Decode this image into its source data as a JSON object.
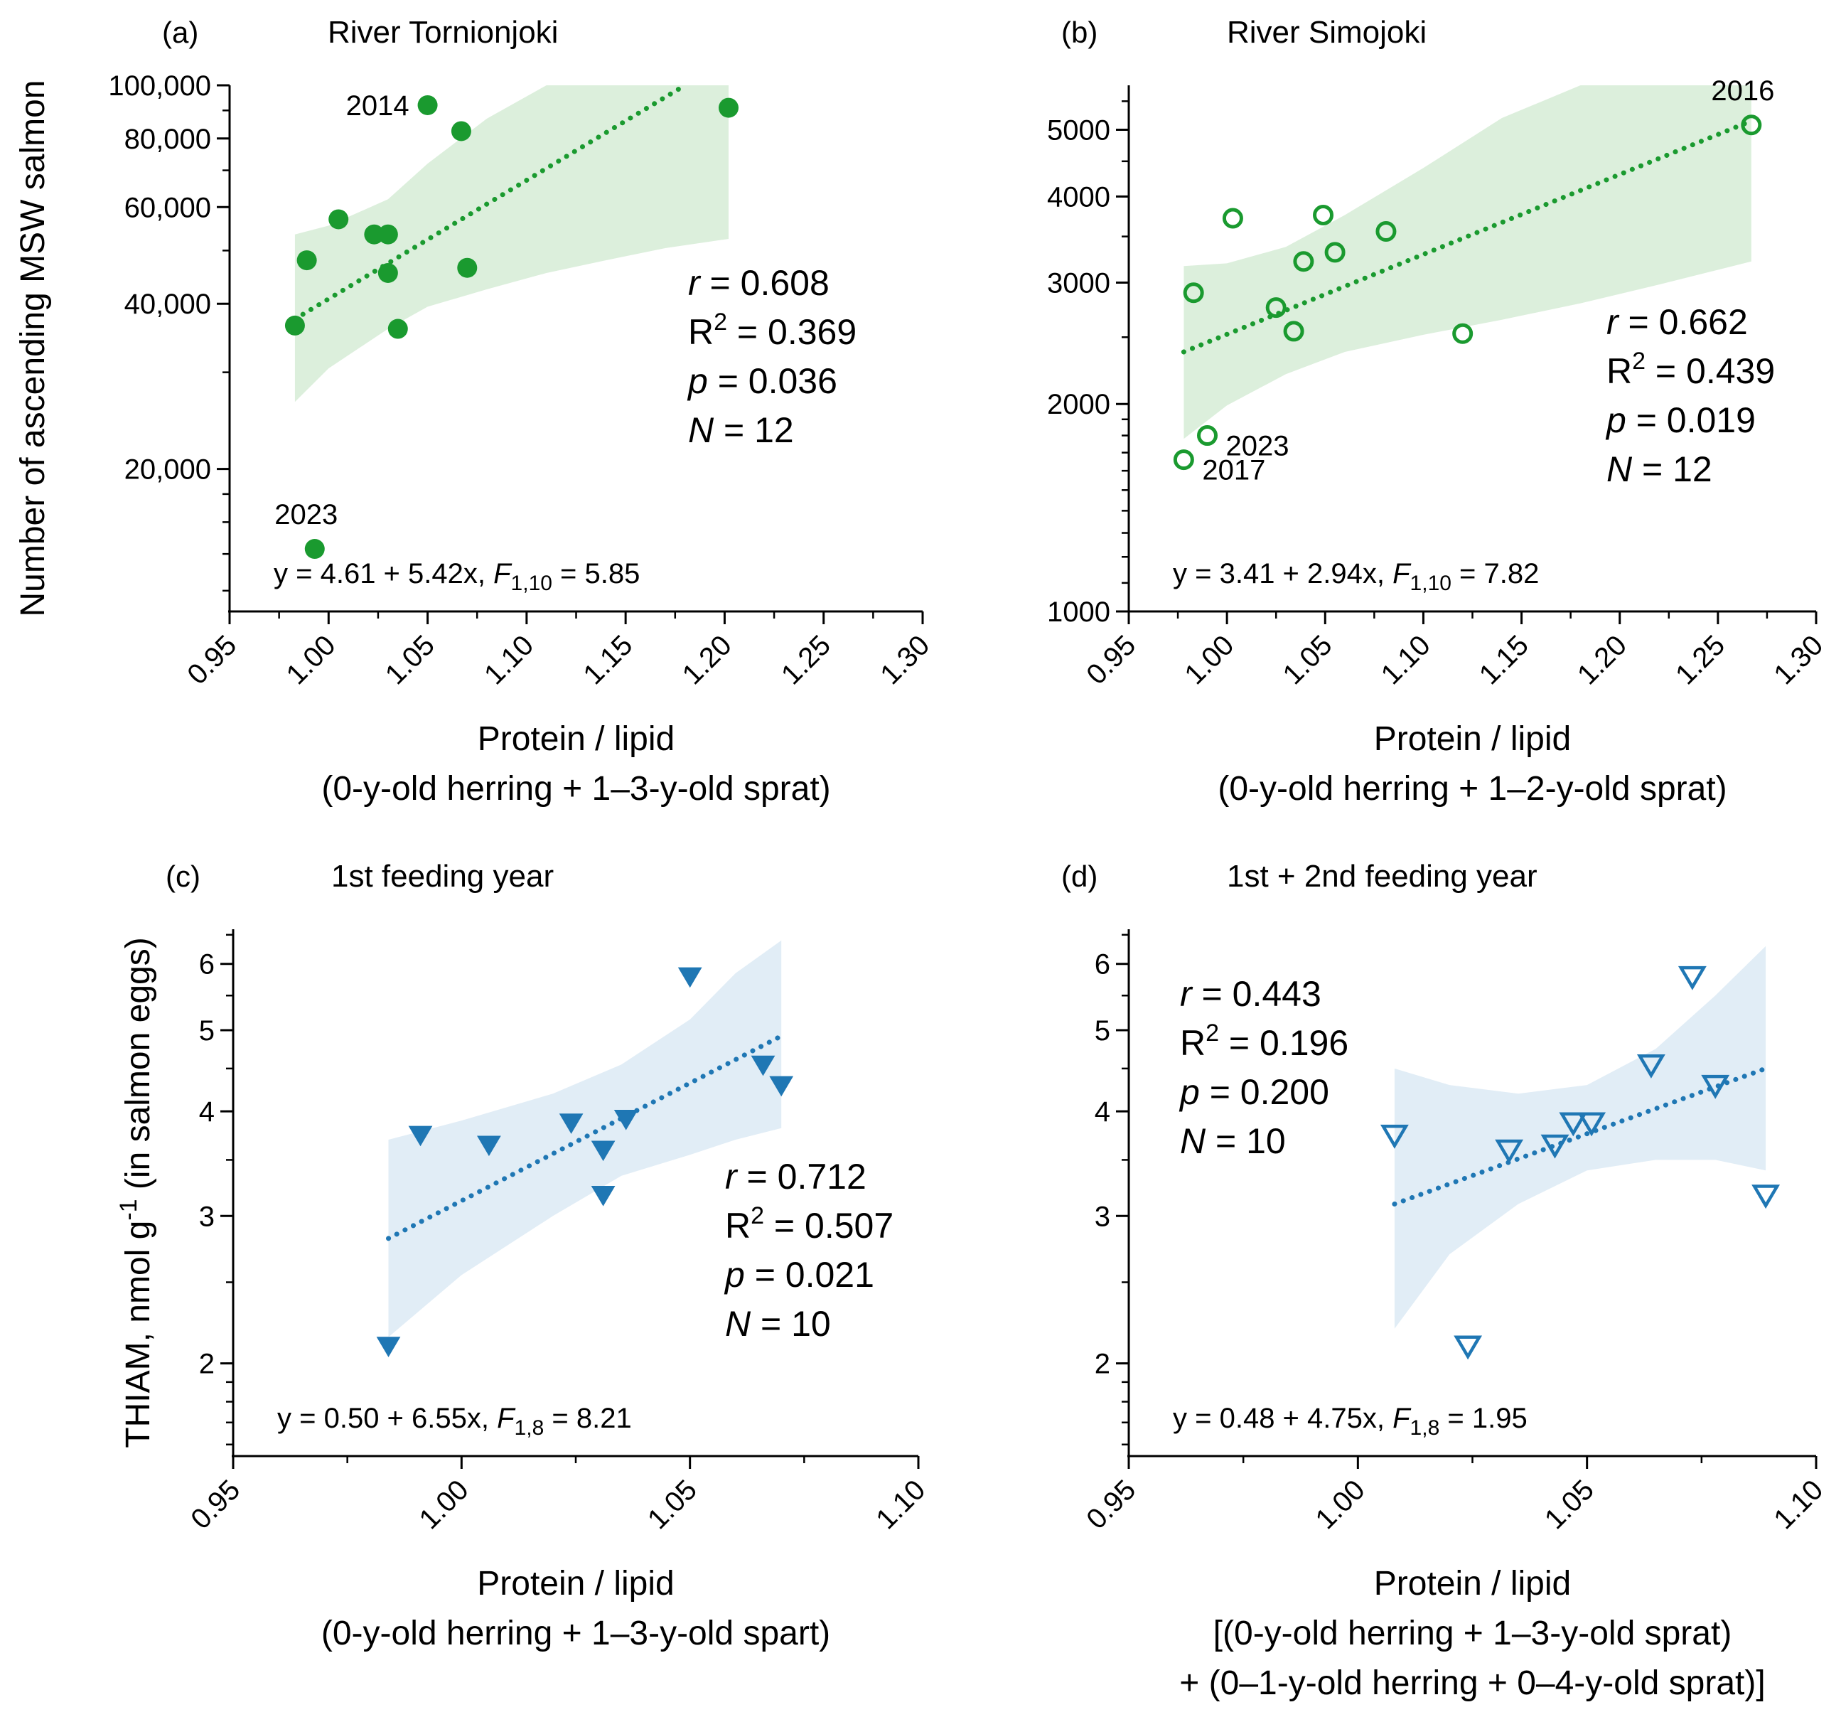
{
  "chart_data": [
    {
      "panel": "a",
      "type": "scatter",
      "letter": "(a)",
      "title": "River Tornionjoki",
      "ylabel": "Number of ascending MSW salmon",
      "xlabel": [
        "Protein / lipid",
        "(0-y-old herring + 1–3-y-old sprat)"
      ],
      "x_ticks": [
        "0.95",
        "1.00",
        "1.05",
        "1.10",
        "1.15",
        "1.20",
        "1.25",
        "1.30"
      ],
      "y_ticks": [
        "20,000",
        "40,000",
        "60,000",
        "80,000",
        "100,000"
      ],
      "xlim": [
        0.95,
        1.3
      ],
      "ylim": [
        11000,
        100000
      ],
      "yscale": "log",
      "marker": "filled-circle",
      "color": "#1a9a2f",
      "band_color": "#dcefdc",
      "points": [
        {
          "x": 0.983,
          "y": 36500
        },
        {
          "x": 0.989,
          "y": 48000
        },
        {
          "x": 0.993,
          "y": 14300
        },
        {
          "x": 1.005,
          "y": 57000
        },
        {
          "x": 1.023,
          "y": 53500
        },
        {
          "x": 1.03,
          "y": 53500
        },
        {
          "x": 1.03,
          "y": 45500
        },
        {
          "x": 1.035,
          "y": 36000
        },
        {
          "x": 1.05,
          "y": 92000
        },
        {
          "x": 1.067,
          "y": 82500
        },
        {
          "x": 1.07,
          "y": 46500
        },
        {
          "x": 1.202,
          "y": 91000
        }
      ],
      "point_labels": [
        {
          "text": "2014",
          "x": 1.05,
          "y": 92000,
          "pos": "left"
        },
        {
          "text": "2023",
          "x": 0.993,
          "y": 14300,
          "pos": "above"
        }
      ],
      "fit": {
        "x": [
          0.983,
          1.18
        ],
        "y": [
          37500,
          100000
        ]
      },
      "band": {
        "x": [
          0.983,
          1.0,
          1.03,
          1.05,
          1.08,
          1.11,
          1.14,
          1.17,
          1.202
        ],
        "upper": [
          53500,
          55500,
          62000,
          72000,
          87000,
          100000,
          100000,
          100000,
          100000
        ],
        "lower": [
          26500,
          30500,
          36000,
          39500,
          42500,
          45500,
          48000,
          50500,
          52500
        ]
      },
      "stats": {
        "r": "0.608",
        "R2": "0.369",
        "p": "0.036",
        "N": "12"
      },
      "stats_pos": "mid-right",
      "equation": {
        "prefix": "y = 4.61 + 5.42x, ",
        "F_sub": "1,10",
        "F_val": " = 5.85"
      }
    },
    {
      "panel": "b",
      "type": "scatter",
      "letter": "(b)",
      "title": "River Simojoki",
      "ylabel": "",
      "xlabel": [
        "Protein / lipid",
        "(0-y-old herring + 1–2-y-old sprat)"
      ],
      "x_ticks": [
        "0.95",
        "1.00",
        "1.05",
        "1.10",
        "1.15",
        "1.20",
        "1.25",
        "1.30"
      ],
      "y_ticks": [
        "1000",
        "2000",
        "3000",
        "4000",
        "5000"
      ],
      "xlim": [
        0.95,
        1.3
      ],
      "ylim": [
        1000,
        5800
      ],
      "yscale": "log",
      "marker": "open-circle",
      "color": "#1a9a2f",
      "band_color": "#dcefdc",
      "points": [
        {
          "x": 0.978,
          "y": 1660
        },
        {
          "x": 0.983,
          "y": 2900
        },
        {
          "x": 0.99,
          "y": 1800
        },
        {
          "x": 1.003,
          "y": 3720
        },
        {
          "x": 1.025,
          "y": 2760
        },
        {
          "x": 1.034,
          "y": 2550
        },
        {
          "x": 1.039,
          "y": 3220
        },
        {
          "x": 1.049,
          "y": 3760
        },
        {
          "x": 1.055,
          "y": 3320
        },
        {
          "x": 1.081,
          "y": 3560
        },
        {
          "x": 1.12,
          "y": 2530
        },
        {
          "x": 1.267,
          "y": 5080
        }
      ],
      "point_labels": [
        {
          "text": "2016",
          "x": 1.267,
          "y": 5080,
          "pos": "above"
        },
        {
          "text": "2023",
          "x": 0.99,
          "y": 1800,
          "pos": "right"
        },
        {
          "text": "2017",
          "x": 0.978,
          "y": 1660,
          "pos": "right"
        }
      ],
      "fit": {
        "x": [
          0.978,
          1.267
        ],
        "y": [
          2380,
          5150
        ]
      },
      "band": {
        "x": [
          0.978,
          1.0,
          1.03,
          1.06,
          1.1,
          1.14,
          1.18,
          1.22,
          1.267
        ],
        "upper": [
          3170,
          3200,
          3380,
          3760,
          4400,
          5200,
          5800,
          5800,
          5800
        ],
        "lower": [
          1780,
          1990,
          2210,
          2380,
          2520,
          2650,
          2800,
          2980,
          3220
        ]
      },
      "stats": {
        "r": "0.662",
        "R2": "0.439",
        "p": "0.019",
        "N": "12"
      },
      "stats_pos": "mid-right",
      "equation": {
        "prefix": "y = 3.41 + 2.94x, ",
        "F_sub": "1,10",
        "F_val": " = 7.82"
      }
    },
    {
      "panel": "c",
      "type": "scatter",
      "letter": "(c)",
      "title": "1st feeding year",
      "ylabel": "THIAM, nmol g⁻¹ (in salmon eggs)",
      "xlabel": [
        "Protein / lipid",
        "(0-y-old herring + 1–3-y-old spart)"
      ],
      "x_ticks": [
        "0.95",
        "1.00",
        "1.05",
        "1.10"
      ],
      "y_ticks": [
        "2",
        "3",
        "4",
        "5",
        "6"
      ],
      "xlim": [
        0.95,
        1.1
      ],
      "ylim": [
        1.55,
        6.6
      ],
      "yscale": "log",
      "marker": "filled-triangle",
      "color": "#1f77b4",
      "band_color": "#e1edf6",
      "points": [
        {
          "x": 0.984,
          "y": 2.1
        },
        {
          "x": 0.991,
          "y": 3.75
        },
        {
          "x": 1.006,
          "y": 3.65
        },
        {
          "x": 1.024,
          "y": 3.88
        },
        {
          "x": 1.031,
          "y": 3.18
        },
        {
          "x": 1.031,
          "y": 3.6
        },
        {
          "x": 1.036,
          "y": 3.92
        },
        {
          "x": 1.05,
          "y": 5.8
        },
        {
          "x": 1.066,
          "y": 4.55
        },
        {
          "x": 1.07,
          "y": 4.3
        }
      ],
      "point_labels": [],
      "fit": {
        "x": [
          0.984,
          1.07
        ],
        "y": [
          2.82,
          4.92
        ]
      },
      "band": {
        "x": [
          0.984,
          1.0,
          1.02,
          1.035,
          1.05,
          1.06,
          1.07
        ],
        "upper": [
          3.7,
          3.9,
          4.2,
          4.55,
          5.15,
          5.85,
          6.4
        ],
        "lower": [
          2.15,
          2.55,
          3.0,
          3.35,
          3.55,
          3.7,
          3.82
        ]
      },
      "stats": {
        "r": "0.712",
        "R2": "0.507",
        "p": "0.021",
        "N": "10"
      },
      "stats_pos": "mid-right",
      "equation": {
        "prefix": "y = 0.50 + 6.55x, ",
        "F_sub": "1,8",
        "F_val": " = 8.21"
      }
    },
    {
      "panel": "d",
      "type": "scatter",
      "letter": "(d)",
      "title": "1st + 2nd feeding year",
      "ylabel": "",
      "xlabel": [
        "Protein / lipid",
        "[(0-y-old herring + 1–3-y-old sprat)",
        "+ (0–1-y-old herring + 0–4-y-old sprat)]"
      ],
      "x_ticks": [
        "0.95",
        "1.00",
        "1.05",
        "1.10"
      ],
      "y_ticks": [
        "2",
        "3",
        "4",
        "5",
        "6"
      ],
      "xlim": [
        0.95,
        1.1
      ],
      "ylim": [
        1.55,
        6.6
      ],
      "yscale": "log",
      "marker": "open-triangle",
      "color": "#1f77b4",
      "band_color": "#e1edf6",
      "points": [
        {
          "x": 1.008,
          "y": 3.75
        },
        {
          "x": 1.024,
          "y": 2.1
        },
        {
          "x": 1.033,
          "y": 3.6
        },
        {
          "x": 1.043,
          "y": 3.65
        },
        {
          "x": 1.047,
          "y": 3.88
        },
        {
          "x": 1.051,
          "y": 3.88
        },
        {
          "x": 1.064,
          "y": 4.55
        },
        {
          "x": 1.073,
          "y": 5.8
        },
        {
          "x": 1.078,
          "y": 4.3
        },
        {
          "x": 1.089,
          "y": 3.18
        }
      ],
      "point_labels": [],
      "fit": {
        "x": [
          1.008,
          1.089
        ],
        "y": [
          3.1,
          4.5
        ]
      },
      "band": {
        "x": [
          1.008,
          1.02,
          1.035,
          1.05,
          1.065,
          1.078,
          1.089
        ],
        "upper": [
          4.5,
          4.3,
          4.2,
          4.3,
          4.75,
          5.5,
          6.3
        ],
        "lower": [
          2.2,
          2.7,
          3.1,
          3.4,
          3.5,
          3.5,
          3.4
        ]
      },
      "stats": {
        "r": "0.443",
        "R2": "0.196",
        "p": "0.200",
        "N": "10"
      },
      "stats_pos": "top-left",
      "equation": {
        "prefix": "y = 0.48 + 4.75x, ",
        "F_sub": "1,8",
        "F_val": " = 1.95"
      }
    }
  ]
}
